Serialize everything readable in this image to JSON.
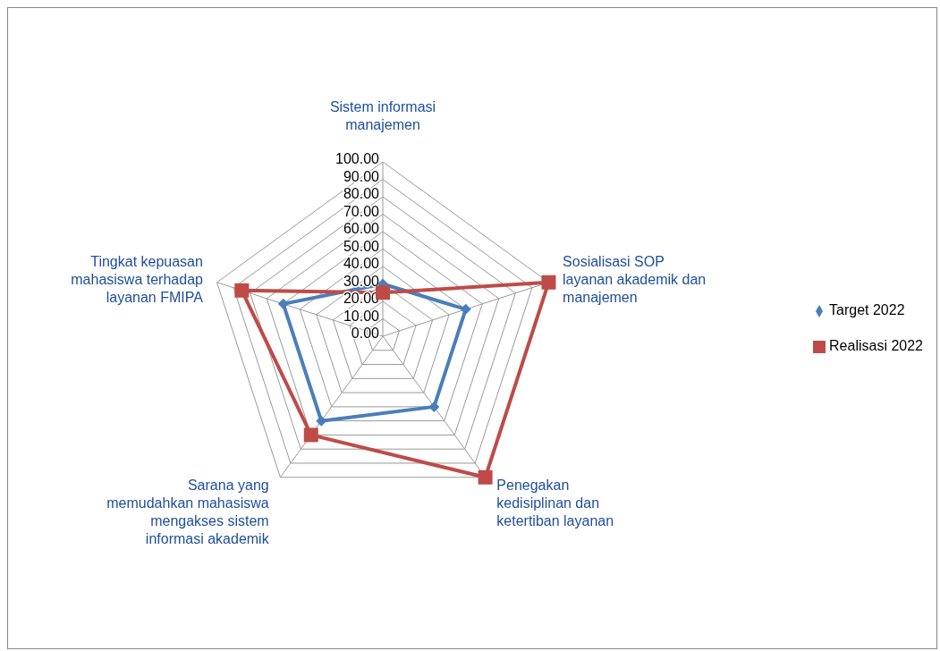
{
  "chart_data": {
    "type": "radar",
    "categories": [
      "Sistem informasi manajemen",
      "Sosialisasi SOP layanan akademik dan manajemen",
      "Penegakan kedisiplinan dan ketertiban layanan",
      "Sarana yang memudahkan mahasiswa mengakses sistem informasi akademik",
      "Tingkat kepuasan mahasiswa terhadap layanan FMIPA"
    ],
    "series": [
      {
        "name": "Target 2022",
        "color": "#4a7ebb",
        "marker": "diamond",
        "values": [
          30,
          50,
          50,
          60,
          60
        ]
      },
      {
        "name": "Realisasi 2022",
        "color": "#be4b48",
        "marker": "square",
        "values": [
          25,
          100,
          100,
          70,
          85
        ]
      }
    ],
    "ylim": [
      0,
      100
    ],
    "yticks": [
      {
        "value": 0,
        "label": "0.00"
      },
      {
        "value": 10,
        "label": "10.00"
      },
      {
        "value": 20,
        "label": "20.00"
      },
      {
        "value": 30,
        "label": "30.00"
      },
      {
        "value": 40,
        "label": "40.00"
      },
      {
        "value": 50,
        "label": "50.00"
      },
      {
        "value": 60,
        "label": "60.00"
      },
      {
        "value": 70,
        "label": "70.00"
      },
      {
        "value": 80,
        "label": "80.00"
      },
      {
        "value": 90,
        "label": "90.00"
      },
      {
        "value": 100,
        "label": "100.00"
      }
    ],
    "grid": true,
    "legend": "right"
  }
}
